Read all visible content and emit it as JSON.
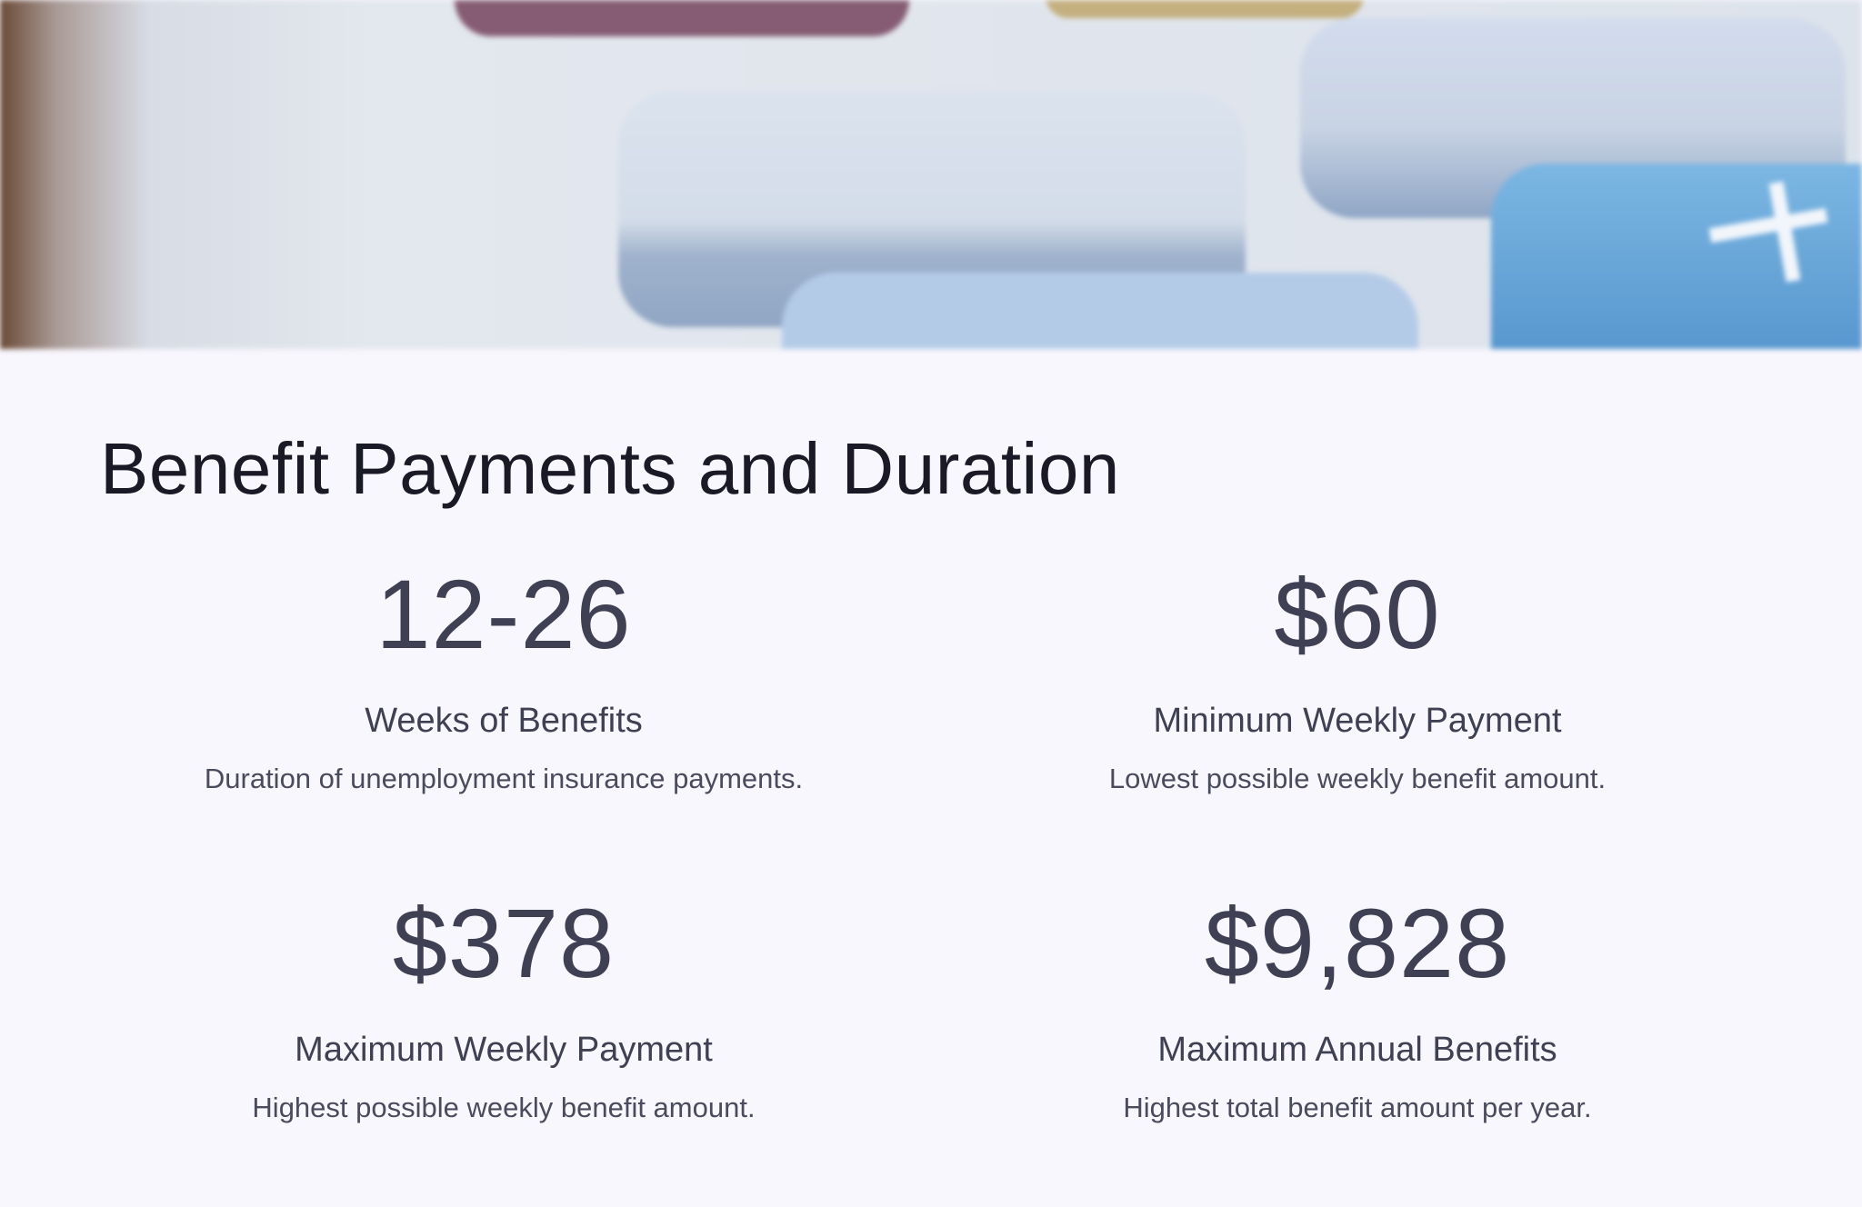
{
  "hero_image": {
    "description_icon": "calculator-keys-image"
  },
  "section": {
    "title": "Benefit Payments and Duration",
    "stats": [
      {
        "value": "12-26",
        "label": "Weeks of Benefits",
        "description": "Duration of unemployment insurance payments."
      },
      {
        "value": "$60",
        "label": "Minimum Weekly Payment",
        "description": "Lowest possible weekly benefit amount."
      },
      {
        "value": "$378",
        "label": "Maximum Weekly Payment",
        "description": "Highest possible weekly benefit amount."
      },
      {
        "value": "$9,828",
        "label": "Maximum Annual Benefits",
        "description": "Highest total benefit amount per year."
      }
    ]
  },
  "colors": {
    "background": "#f8f7fd",
    "heading": "#1a1a26",
    "stat_text": "#3f4053"
  }
}
